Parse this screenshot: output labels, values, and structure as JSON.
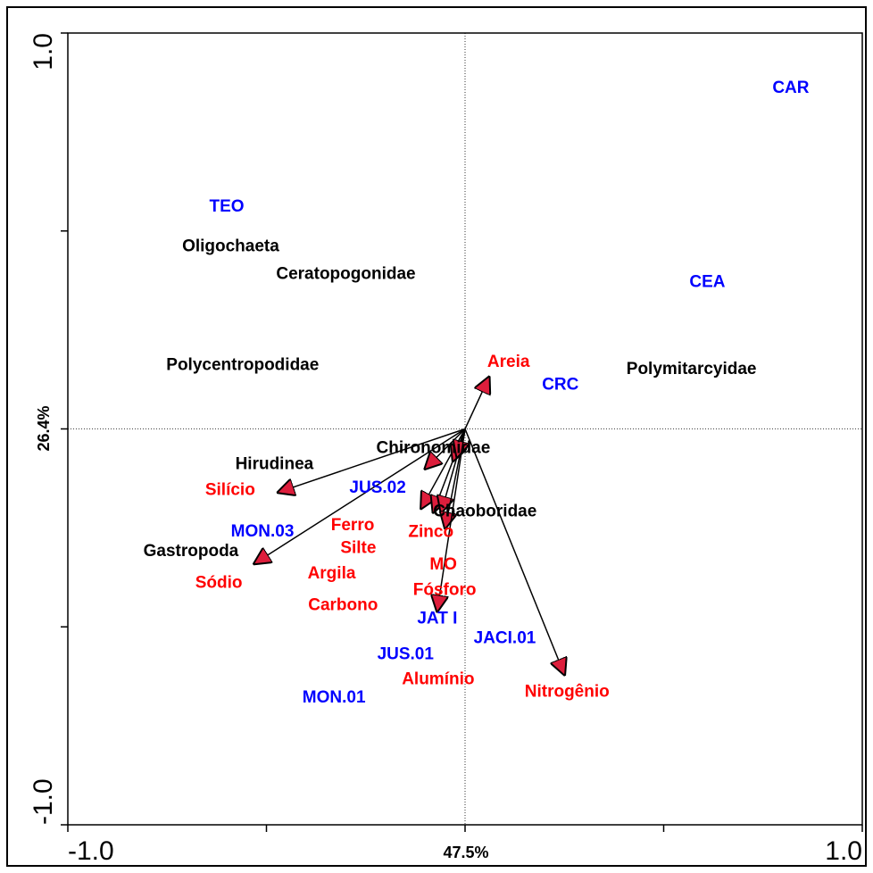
{
  "chart_data": {
    "type": "biplot",
    "xlabel": "47.5%",
    "ylabel": "26.4%",
    "xlim": [
      -1,
      1
    ],
    "ylim": [
      -1,
      1
    ],
    "xticks": [
      {
        "value": -1,
        "label": "-1.0"
      },
      {
        "value": 1,
        "label": "1.0"
      }
    ],
    "yticks": [
      {
        "value": -1,
        "label": "-1.0"
      },
      {
        "value": 1,
        "label": "1.0"
      }
    ],
    "xminor_ticks": [
      -0.5,
      0,
      0.5
    ],
    "yminor_ticks": [
      -0.5,
      0,
      0.5
    ],
    "zero_lines": true,
    "sites": {
      "color": "#0000ff",
      "names": [
        "CAR",
        "TEO",
        "CEA",
        "CRC",
        "JUS.02",
        "MON.03",
        "JAT I",
        "JACI.01",
        "JUS.01",
        "MON.01"
      ],
      "x": [
        0.82,
        -0.6,
        0.61,
        0.24,
        -0.22,
        -0.51,
        -0.07,
        0.1,
        -0.15,
        -0.33
      ],
      "y": [
        0.86,
        0.56,
        0.37,
        0.11,
        -0.15,
        -0.26,
        -0.48,
        -0.53,
        -0.57,
        -0.68
      ]
    },
    "species": {
      "color": "#000000",
      "names": [
        "Oligochaeta",
        "Ceratopogonidae",
        "Polycentropodidae",
        "Polymitarcyidae",
        "Chironomidae",
        "Hirudinea",
        "Chaoboridae",
        "Gastropoda"
      ],
      "x": [
        -0.59,
        -0.3,
        -0.56,
        0.57,
        -0.08,
        -0.48,
        0.05,
        -0.69
      ],
      "y": [
        0.46,
        0.39,
        0.16,
        0.15,
        -0.05,
        -0.09,
        -0.21,
        -0.31
      ]
    },
    "vectors": {
      "color": "#ff0000",
      "line_color": "#000000",
      "head_color": "#dd1e3c",
      "names": [
        "Areia",
        "Silício",
        "Sódio",
        "Nitrogênio",
        "Ferro",
        "Silte",
        "Argila",
        "Carbono",
        "Zinco",
        "MO",
        "Fósforo",
        "Alumínio"
      ],
      "x": [
        0.06,
        -0.47,
        -0.53,
        0.25,
        -0.11,
        -0.08,
        -0.1,
        -0.06,
        -0.05,
        -0.03,
        -0.02,
        -0.07
      ],
      "y": [
        0.13,
        -0.16,
        -0.34,
        -0.62,
        -0.2,
        -0.21,
        -0.1,
        -0.21,
        -0.25,
        -0.08,
        -0.07,
        -0.46
      ]
    }
  }
}
